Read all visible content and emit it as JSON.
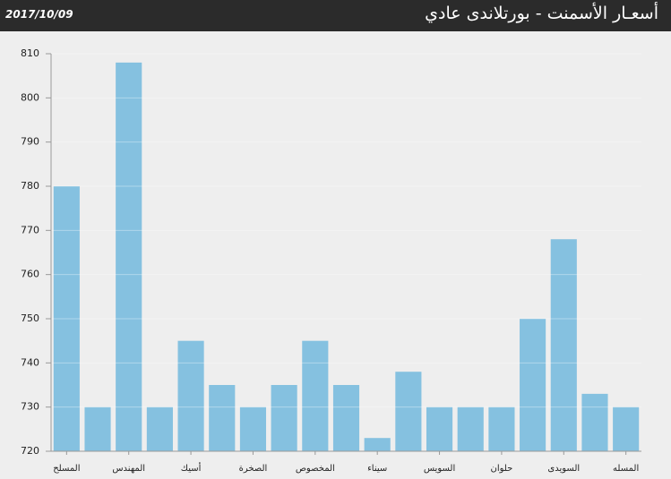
{
  "chart_data": {
    "type": "bar",
    "title": "أسعـار الأسمنت - بورتلاندى عادي",
    "date": "2017/10/09",
    "categories": [
      "المسلح",
      null,
      "المهندس",
      null,
      "أسيك",
      null,
      "الصخرة",
      null,
      "المخصوص",
      null,
      "سيناء",
      null,
      "السويس",
      null,
      "حلوان",
      null,
      "السويدى",
      null,
      "المسله"
    ],
    "values": [
      780,
      730,
      808,
      730,
      745,
      735,
      730,
      735,
      745,
      735,
      723,
      738,
      730,
      730,
      730,
      750,
      768,
      733,
      730
    ],
    "color": "#85c1e0",
    "ylim": [
      720,
      810
    ],
    "yticks": [
      720,
      730,
      740,
      750,
      760,
      770,
      780,
      790,
      800,
      810
    ],
    "grid": true
  }
}
